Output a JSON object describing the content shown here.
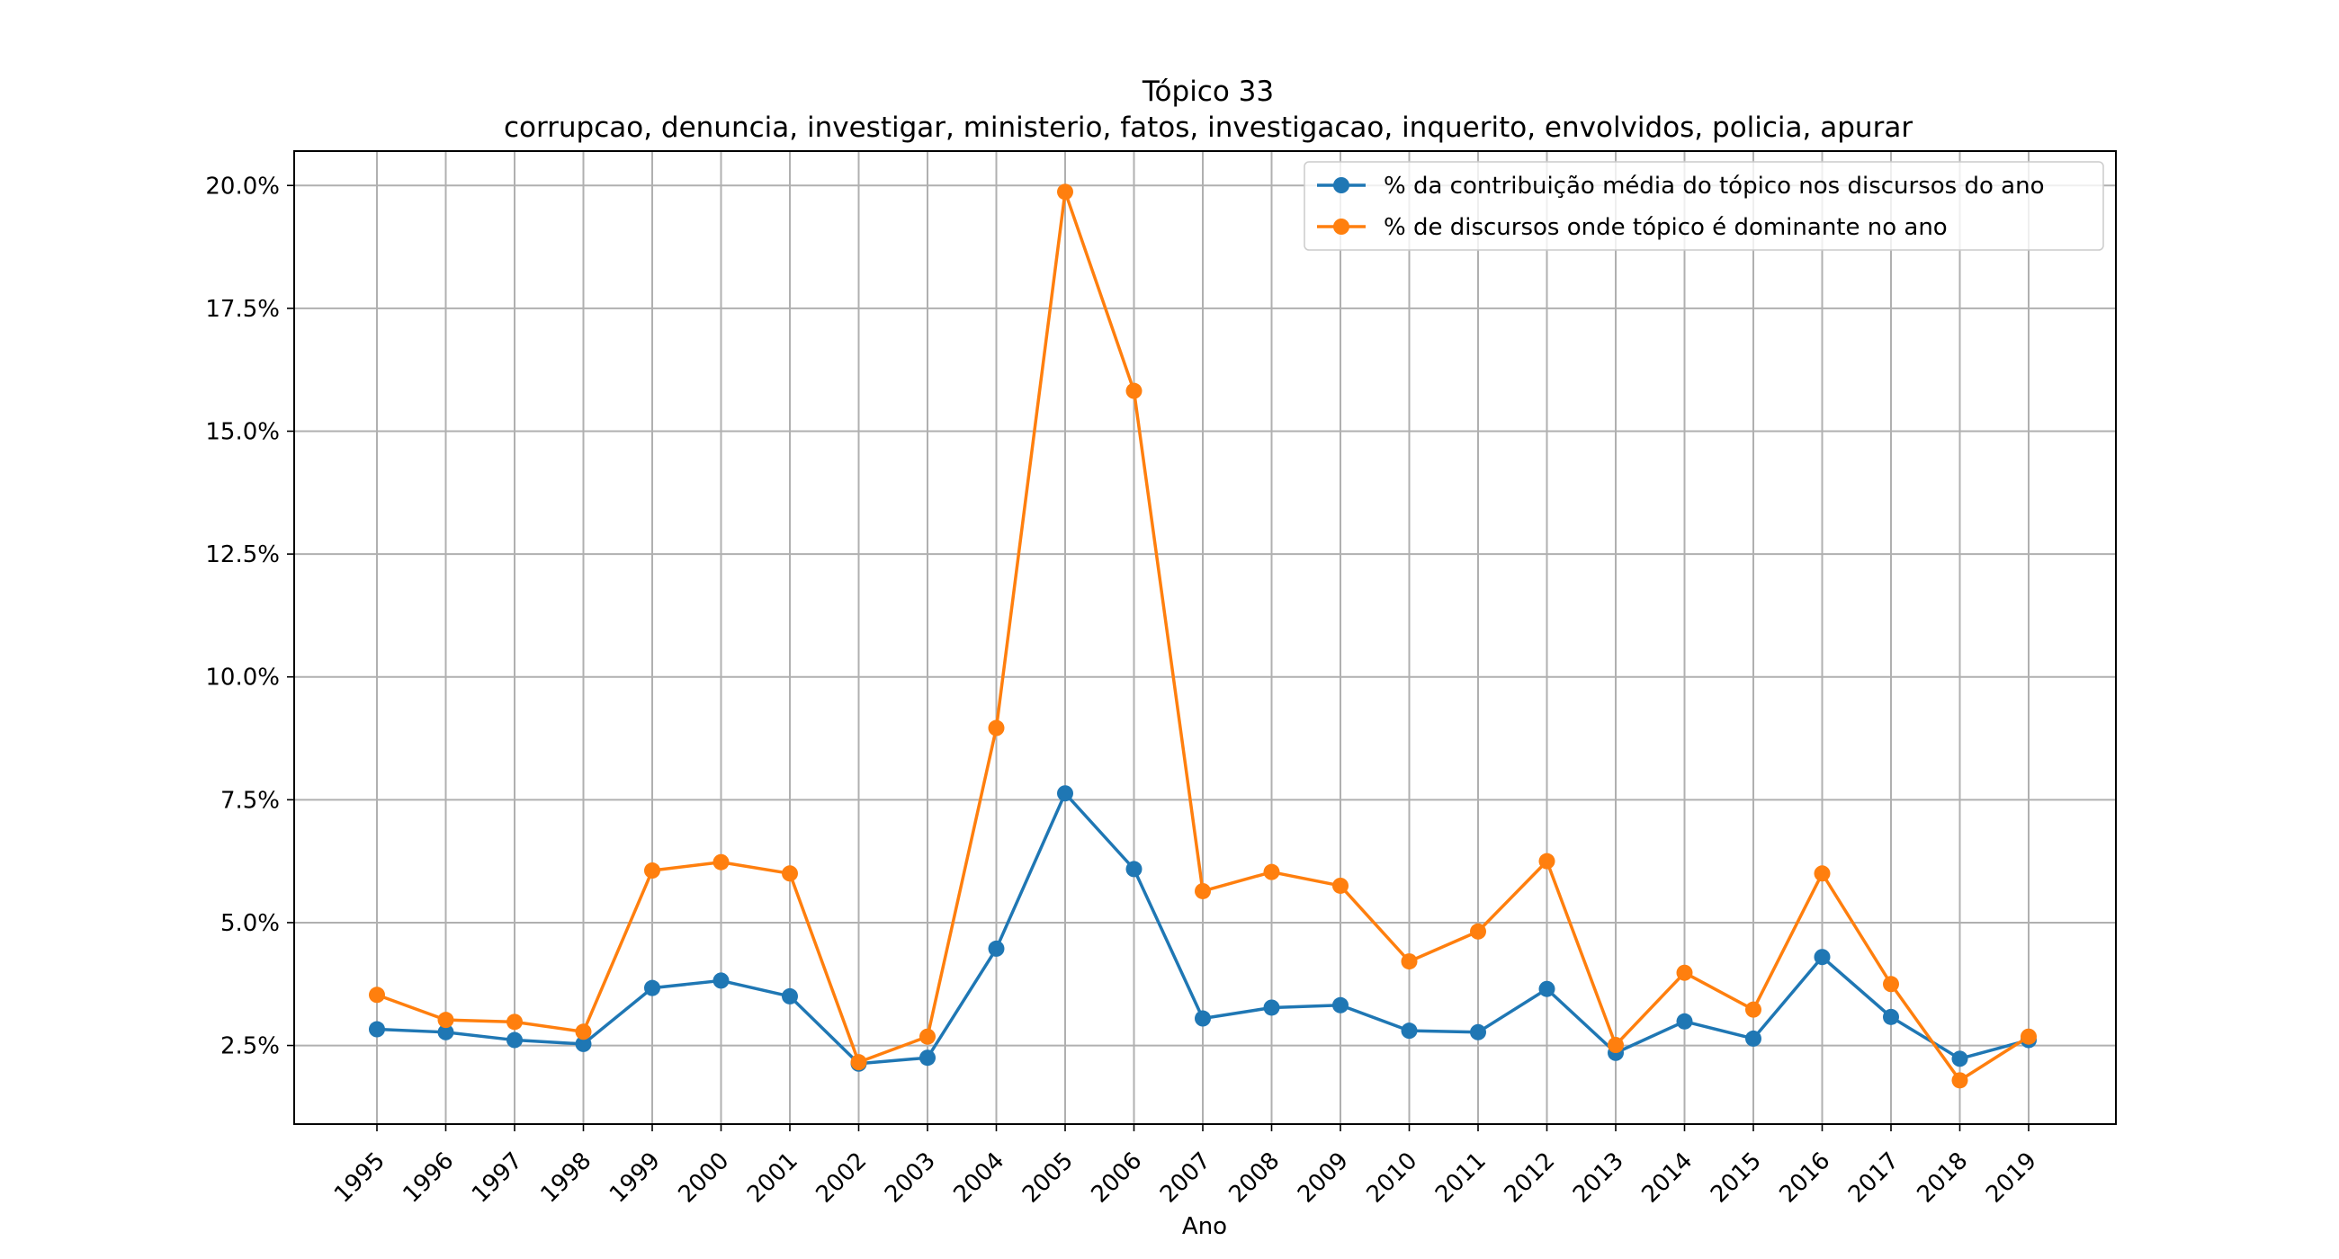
{
  "chart_data": {
    "type": "line",
    "title": "Tópico 33",
    "subtitle": "corrupcao, denuncia, investigar, ministerio, fatos, investigacao, inquerito, envolvidos, policia, apurar",
    "xlabel": "Ano",
    "ylabel": "",
    "x": [
      "1995",
      "1996",
      "1997",
      "1998",
      "1999",
      "2000",
      "2001",
      "2002",
      "2003",
      "2004",
      "2005",
      "2006",
      "2007",
      "2008",
      "2009",
      "2010",
      "2011",
      "2012",
      "2013",
      "2014",
      "2015",
      "2016",
      "2017",
      "2018",
      "2019"
    ],
    "ylim": [
      0.9,
      20.7
    ],
    "yticks": [
      2.5,
      5.0,
      7.5,
      10.0,
      12.5,
      15.0,
      17.5,
      20.0
    ],
    "ytick_labels": [
      "2.5%",
      "5.0%",
      "7.5%",
      "10.0%",
      "12.5%",
      "15.0%",
      "17.5%",
      "20.0%"
    ],
    "grid": true,
    "legend_position": "top-right",
    "series": [
      {
        "name": "% da contribuição média do tópico nos discursos do ano",
        "color": "#1f77b4",
        "values": [
          2.83,
          2.77,
          2.61,
          2.53,
          3.67,
          3.82,
          3.5,
          2.13,
          2.25,
          4.47,
          7.63,
          6.09,
          3.05,
          3.27,
          3.32,
          2.8,
          2.77,
          3.65,
          2.35,
          2.99,
          2.64,
          4.3,
          3.08,
          2.23,
          2.61
        ]
      },
      {
        "name": "% de discursos onde tópico é dominante no ano",
        "color": "#ff7f0e",
        "values": [
          3.53,
          3.02,
          2.98,
          2.78,
          6.06,
          6.23,
          6.0,
          2.16,
          2.68,
          8.96,
          19.87,
          15.82,
          5.64,
          6.03,
          5.75,
          4.21,
          4.82,
          6.25,
          2.51,
          3.98,
          3.23,
          6.0,
          3.75,
          1.79,
          2.68
        ]
      }
    ]
  }
}
